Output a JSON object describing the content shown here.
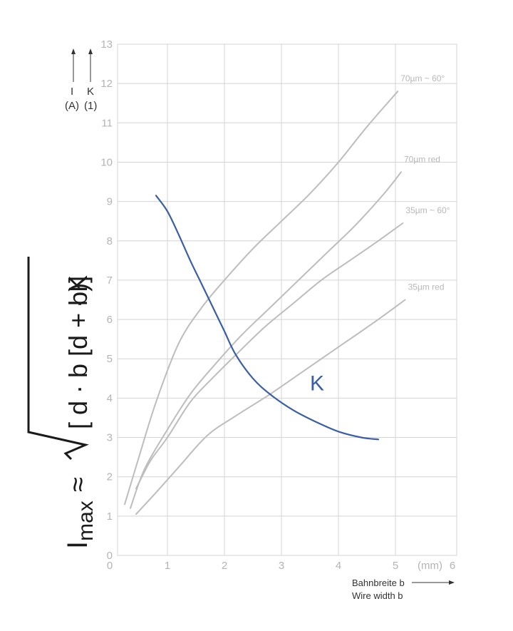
{
  "chart_data": {
    "type": "line",
    "xlim": [
      0,
      6
    ],
    "ylim": [
      0,
      13
    ],
    "x_ticks": [
      "0",
      "1",
      "2",
      "3",
      "4",
      "5",
      "6"
    ],
    "y_ticks": [
      "0",
      "1",
      "2",
      "3",
      "4",
      "5",
      "6",
      "7",
      "8",
      "9",
      "10",
      "11",
      "12",
      "13"
    ],
    "x_unit": "(mm)",
    "grid": true,
    "series": [
      {
        "name": "70µm ~ 60°",
        "color": "#bdbdbd",
        "points": [
          [
            0.25,
            1.3
          ],
          [
            0.5,
            2.5
          ],
          [
            0.8,
            3.9
          ],
          [
            1.2,
            5.4
          ],
          [
            1.6,
            6.3
          ],
          [
            2.0,
            7.0
          ],
          [
            2.5,
            7.8
          ],
          [
            3.0,
            8.5
          ],
          [
            3.5,
            9.2
          ],
          [
            4.0,
            10.0
          ],
          [
            4.5,
            10.9
          ],
          [
            5.04,
            11.8
          ]
        ]
      },
      {
        "name": "70µm red",
        "color": "#bdbdbd",
        "points": [
          [
            0.35,
            1.2
          ],
          [
            0.6,
            2.2
          ],
          [
            1.0,
            3.2
          ],
          [
            1.4,
            4.1
          ],
          [
            1.8,
            4.8
          ],
          [
            2.3,
            5.6
          ],
          [
            2.8,
            6.3
          ],
          [
            3.3,
            7.0
          ],
          [
            3.8,
            7.7
          ],
          [
            4.3,
            8.4
          ],
          [
            4.8,
            9.2
          ],
          [
            5.1,
            9.75
          ]
        ]
      },
      {
        "name": "35µm ~ 60°",
        "color": "#bdbdbd",
        "points": [
          [
            0.45,
            1.7
          ],
          [
            0.7,
            2.4
          ],
          [
            1.0,
            3.0
          ],
          [
            1.4,
            3.9
          ],
          [
            1.75,
            4.45
          ],
          [
            2.2,
            5.1
          ],
          [
            2.7,
            5.8
          ],
          [
            3.2,
            6.4
          ],
          [
            3.7,
            7.0
          ],
          [
            4.2,
            7.5
          ],
          [
            4.7,
            8.0
          ],
          [
            5.13,
            8.45
          ]
        ]
      },
      {
        "name": "35µm red",
        "color": "#bdbdbd",
        "points": [
          [
            0.45,
            1.05
          ],
          [
            0.8,
            1.6
          ],
          [
            1.2,
            2.25
          ],
          [
            1.7,
            3.05
          ],
          [
            2.2,
            3.55
          ],
          [
            2.8,
            4.1
          ],
          [
            3.4,
            4.7
          ],
          [
            4.0,
            5.3
          ],
          [
            4.6,
            5.9
          ],
          [
            5.17,
            6.5
          ]
        ]
      },
      {
        "name": "K",
        "color": "#3a5ea8",
        "points": [
          [
            0.8,
            9.15
          ],
          [
            1.0,
            8.75
          ],
          [
            1.2,
            8.15
          ],
          [
            1.4,
            7.5
          ],
          [
            1.6,
            6.9
          ],
          [
            1.8,
            6.3
          ],
          [
            2.0,
            5.7
          ],
          [
            2.2,
            5.1
          ],
          [
            2.5,
            4.5
          ],
          [
            2.8,
            4.1
          ],
          [
            3.2,
            3.7
          ],
          [
            3.6,
            3.4
          ],
          [
            4.0,
            3.15
          ],
          [
            4.4,
            3.0
          ],
          [
            4.7,
            2.95
          ]
        ]
      }
    ],
    "y_axis": {
      "i_label": "I",
      "i_unit": "(A)",
      "k_label": "K",
      "k_unit": "(1)"
    },
    "x_caption": {
      "line1": "Bahnbreite b",
      "line2": "Wire width b"
    },
    "formula": {
      "lhs_main": "I",
      "lhs_sub": "max",
      "approx": "≈",
      "radicand": "[ d · b [d + b)]",
      "factor": "· K"
    }
  }
}
